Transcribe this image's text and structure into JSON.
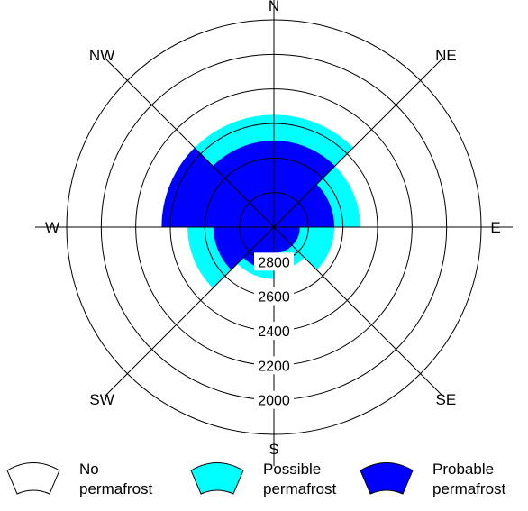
{
  "chart_data": {
    "type": "polar-area",
    "elevation_axis": {
      "outer": 1800,
      "center": 3000,
      "rings": [
        2000,
        2200,
        2400,
        2600,
        2800
      ],
      "ring_labels": [
        "2000",
        "2200",
        "2400",
        "2600",
        "2800"
      ]
    },
    "sector_width_deg": 45,
    "directions": [
      "N",
      "NE",
      "E",
      "SE",
      "S",
      "SW",
      "W",
      "NW"
    ],
    "series": [
      {
        "name": "Possible permafrost",
        "color": "#00ffff",
        "lower_limit_elevation": [
          2350,
          2350,
          2500,
          2650,
          2750,
          2700,
          2500,
          2350
        ]
      },
      {
        "name": "Probable permafrost",
        "color": "#0000ff",
        "lower_limit_elevation": [
          2500,
          2500,
          2650,
          2850,
          2850,
          2750,
          2650,
          2350
        ]
      }
    ],
    "legend": [
      {
        "label_line1": "No",
        "label_line2": "permafrost",
        "color": "#ffffff"
      },
      {
        "label_line1": "Possible",
        "label_line2": "permafrost",
        "color": "#00ffff"
      },
      {
        "label_line1": "Probable",
        "label_line2": "permafrost",
        "color": "#0000ff"
      }
    ]
  }
}
